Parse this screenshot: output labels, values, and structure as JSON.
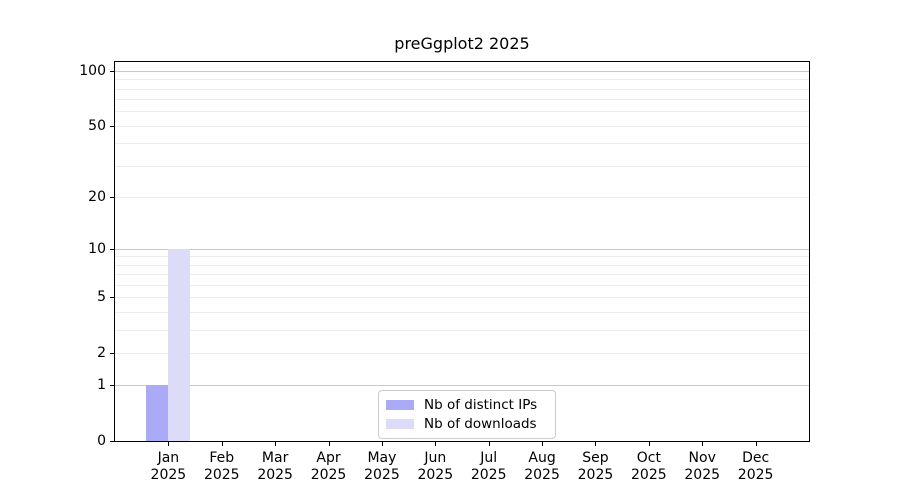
{
  "figure": {
    "background": "#ffffff",
    "text_color": "#000000"
  },
  "chart_data": {
    "type": "bar",
    "title": "preGgplot2 2025",
    "xlabel": "",
    "ylabel": "",
    "scale": "log1p",
    "ylim": [
      0,
      112
    ],
    "grid": "horizontal",
    "year": "2025",
    "categories": [
      "Jan",
      "Feb",
      "Mar",
      "Apr",
      "May",
      "Jun",
      "Jul",
      "Aug",
      "Sep",
      "Oct",
      "Nov",
      "Dec"
    ],
    "series": [
      {
        "name": "Nb of distinct IPs",
        "color": "#aaaaf6",
        "values": [
          1,
          0,
          0,
          0,
          0,
          0,
          0,
          0,
          0,
          0,
          0,
          0
        ]
      },
      {
        "name": "Nb of downloads",
        "color": "#dcdcf8",
        "values": [
          10,
          0,
          0,
          0,
          0,
          0,
          0,
          0,
          0,
          0,
          0,
          0
        ]
      }
    ],
    "y_tick_labels": [
      0,
      1,
      2,
      5,
      10,
      20,
      50,
      100
    ],
    "major_gridlines": [
      1,
      10,
      100
    ],
    "minor_gridlines": [
      2,
      3,
      4,
      5,
      6,
      7,
      8,
      9,
      20,
      30,
      40,
      50,
      60,
      70,
      80,
      90
    ],
    "legend": {
      "position": "lower center",
      "border_color": "#cccccc",
      "entries": [
        "Nb of distinct IPs",
        "Nb of downloads"
      ]
    },
    "colors": {
      "major_grid": "#c9c9c9",
      "minor_grid": "#ececec",
      "axis": "#000000"
    }
  }
}
